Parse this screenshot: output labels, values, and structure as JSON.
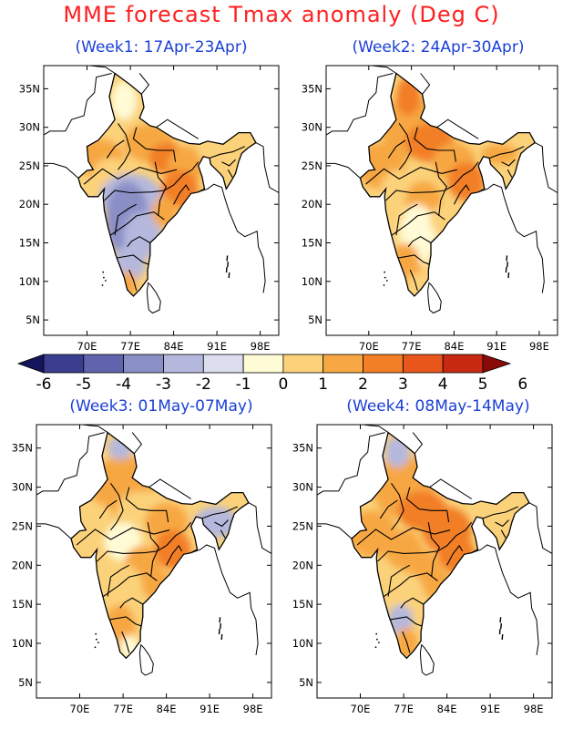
{
  "title": "MME forecast Tmax anomaly (Deg C)",
  "panels": [
    {
      "id": "week1",
      "title": "(Week1: 17Apr-23Apr)"
    },
    {
      "id": "week2",
      "title": "(Week2: 24Apr-30Apr)"
    },
    {
      "id": "week3",
      "title": "(Week3: 01May-07May)"
    },
    {
      "id": "week4",
      "title": "(Week4: 08May-14May)"
    }
  ],
  "axes": {
    "lat_labels": [
      "35N",
      "30N",
      "25N",
      "20N",
      "15N",
      "10N",
      "5N"
    ],
    "lon_labels": [
      "70E",
      "77E",
      "84E",
      "91E",
      "98E"
    ]
  },
  "colorbar": {
    "labels": [
      "-6",
      "-5",
      "-4",
      "-3",
      "-2",
      "-1",
      "0",
      "1",
      "2",
      "3",
      "4",
      "5",
      "6"
    ],
    "colors": [
      "#15155e",
      "#3b3d8e",
      "#6064ad",
      "#8a8fc6",
      "#b5b8dd",
      "#dcdef0",
      "#fffbd6",
      "#fbd27a",
      "#f7a743",
      "#f27e25",
      "#e8561b",
      "#c72a10",
      "#8a0a0a"
    ]
  },
  "legend_colors": {
    "cool": "#b5b8dd",
    "cooler": "#8a8fc6",
    "neutral": "#fffbd6",
    "warm": "#fbd27a",
    "warmer": "#f7a743",
    "hot": "#f27e25"
  }
}
